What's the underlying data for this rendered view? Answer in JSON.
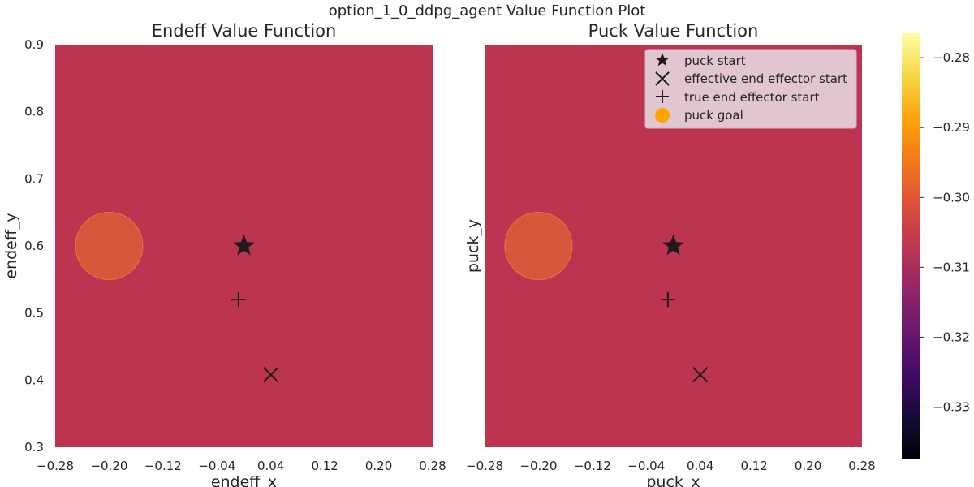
{
  "figure": {
    "suptitle": "option_1_0_ddpg_agent Value Function Plot"
  },
  "colors": {
    "field": "#bc344f",
    "goal": "#d85a3c",
    "marker": "#1b1b1b",
    "legend_bg": "#e1c5d0"
  },
  "chart_data": [
    {
      "type": "heatmap",
      "title": "Endeff Value Function",
      "xlabel": "endeff_x",
      "ylabel": "endeff_y",
      "xlim": [
        -0.28,
        0.28
      ],
      "ylim": [
        0.3,
        0.9
      ],
      "xticks": [
        "−0.28",
        "−0.20",
        "−0.12",
        "−0.04",
        "0.04",
        "0.12",
        "0.20",
        "0.28"
      ],
      "yticks": [
        "0.3",
        "0.4",
        "0.5",
        "0.6",
        "0.7",
        "0.8",
        "0.9"
      ],
      "field_value": -0.309,
      "markers": [
        {
          "label": "puck start",
          "symbol": "star",
          "x": 0.0,
          "y": 0.6
        },
        {
          "label": "effective end effector start",
          "symbol": "x",
          "x": 0.04,
          "y": 0.408
        },
        {
          "label": "true end effector start",
          "symbol": "plus",
          "x": -0.008,
          "y": 0.52
        },
        {
          "label": "puck goal",
          "symbol": "circle",
          "x": -0.2,
          "y": 0.6,
          "radius": 0.05
        }
      ],
      "legend": false
    },
    {
      "type": "heatmap",
      "title": "Puck Value Function",
      "xlabel": "puck_x",
      "ylabel": "puck_y",
      "xlim": [
        -0.28,
        0.28
      ],
      "ylim": [
        0.3,
        0.9
      ],
      "xticks": [
        "−0.28",
        "−0.20",
        "−0.12",
        "−0.04",
        "0.04",
        "0.12",
        "0.20",
        "0.28"
      ],
      "yticks": [],
      "field_value": -0.309,
      "markers": [
        {
          "label": "puck start",
          "symbol": "star",
          "x": 0.0,
          "y": 0.6
        },
        {
          "label": "effective end effector start",
          "symbol": "x",
          "x": 0.04,
          "y": 0.408
        },
        {
          "label": "true end effector start",
          "symbol": "plus",
          "x": -0.008,
          "y": 0.52
        },
        {
          "label": "puck goal",
          "symbol": "circle",
          "x": -0.2,
          "y": 0.6,
          "radius": 0.05
        }
      ],
      "legend": true,
      "legend_position": "top-right"
    }
  ],
  "colorbar": {
    "colormap": "inferno",
    "range": [
      -0.3375,
      -0.2765
    ],
    "ticks": [
      {
        "label": "−0.28",
        "value": -0.28
      },
      {
        "label": "−0.29",
        "value": -0.29
      },
      {
        "label": "−0.30",
        "value": -0.3
      },
      {
        "label": "−0.31",
        "value": -0.31
      },
      {
        "label": "−0.32",
        "value": -0.32
      },
      {
        "label": "−0.33",
        "value": -0.33
      }
    ]
  }
}
